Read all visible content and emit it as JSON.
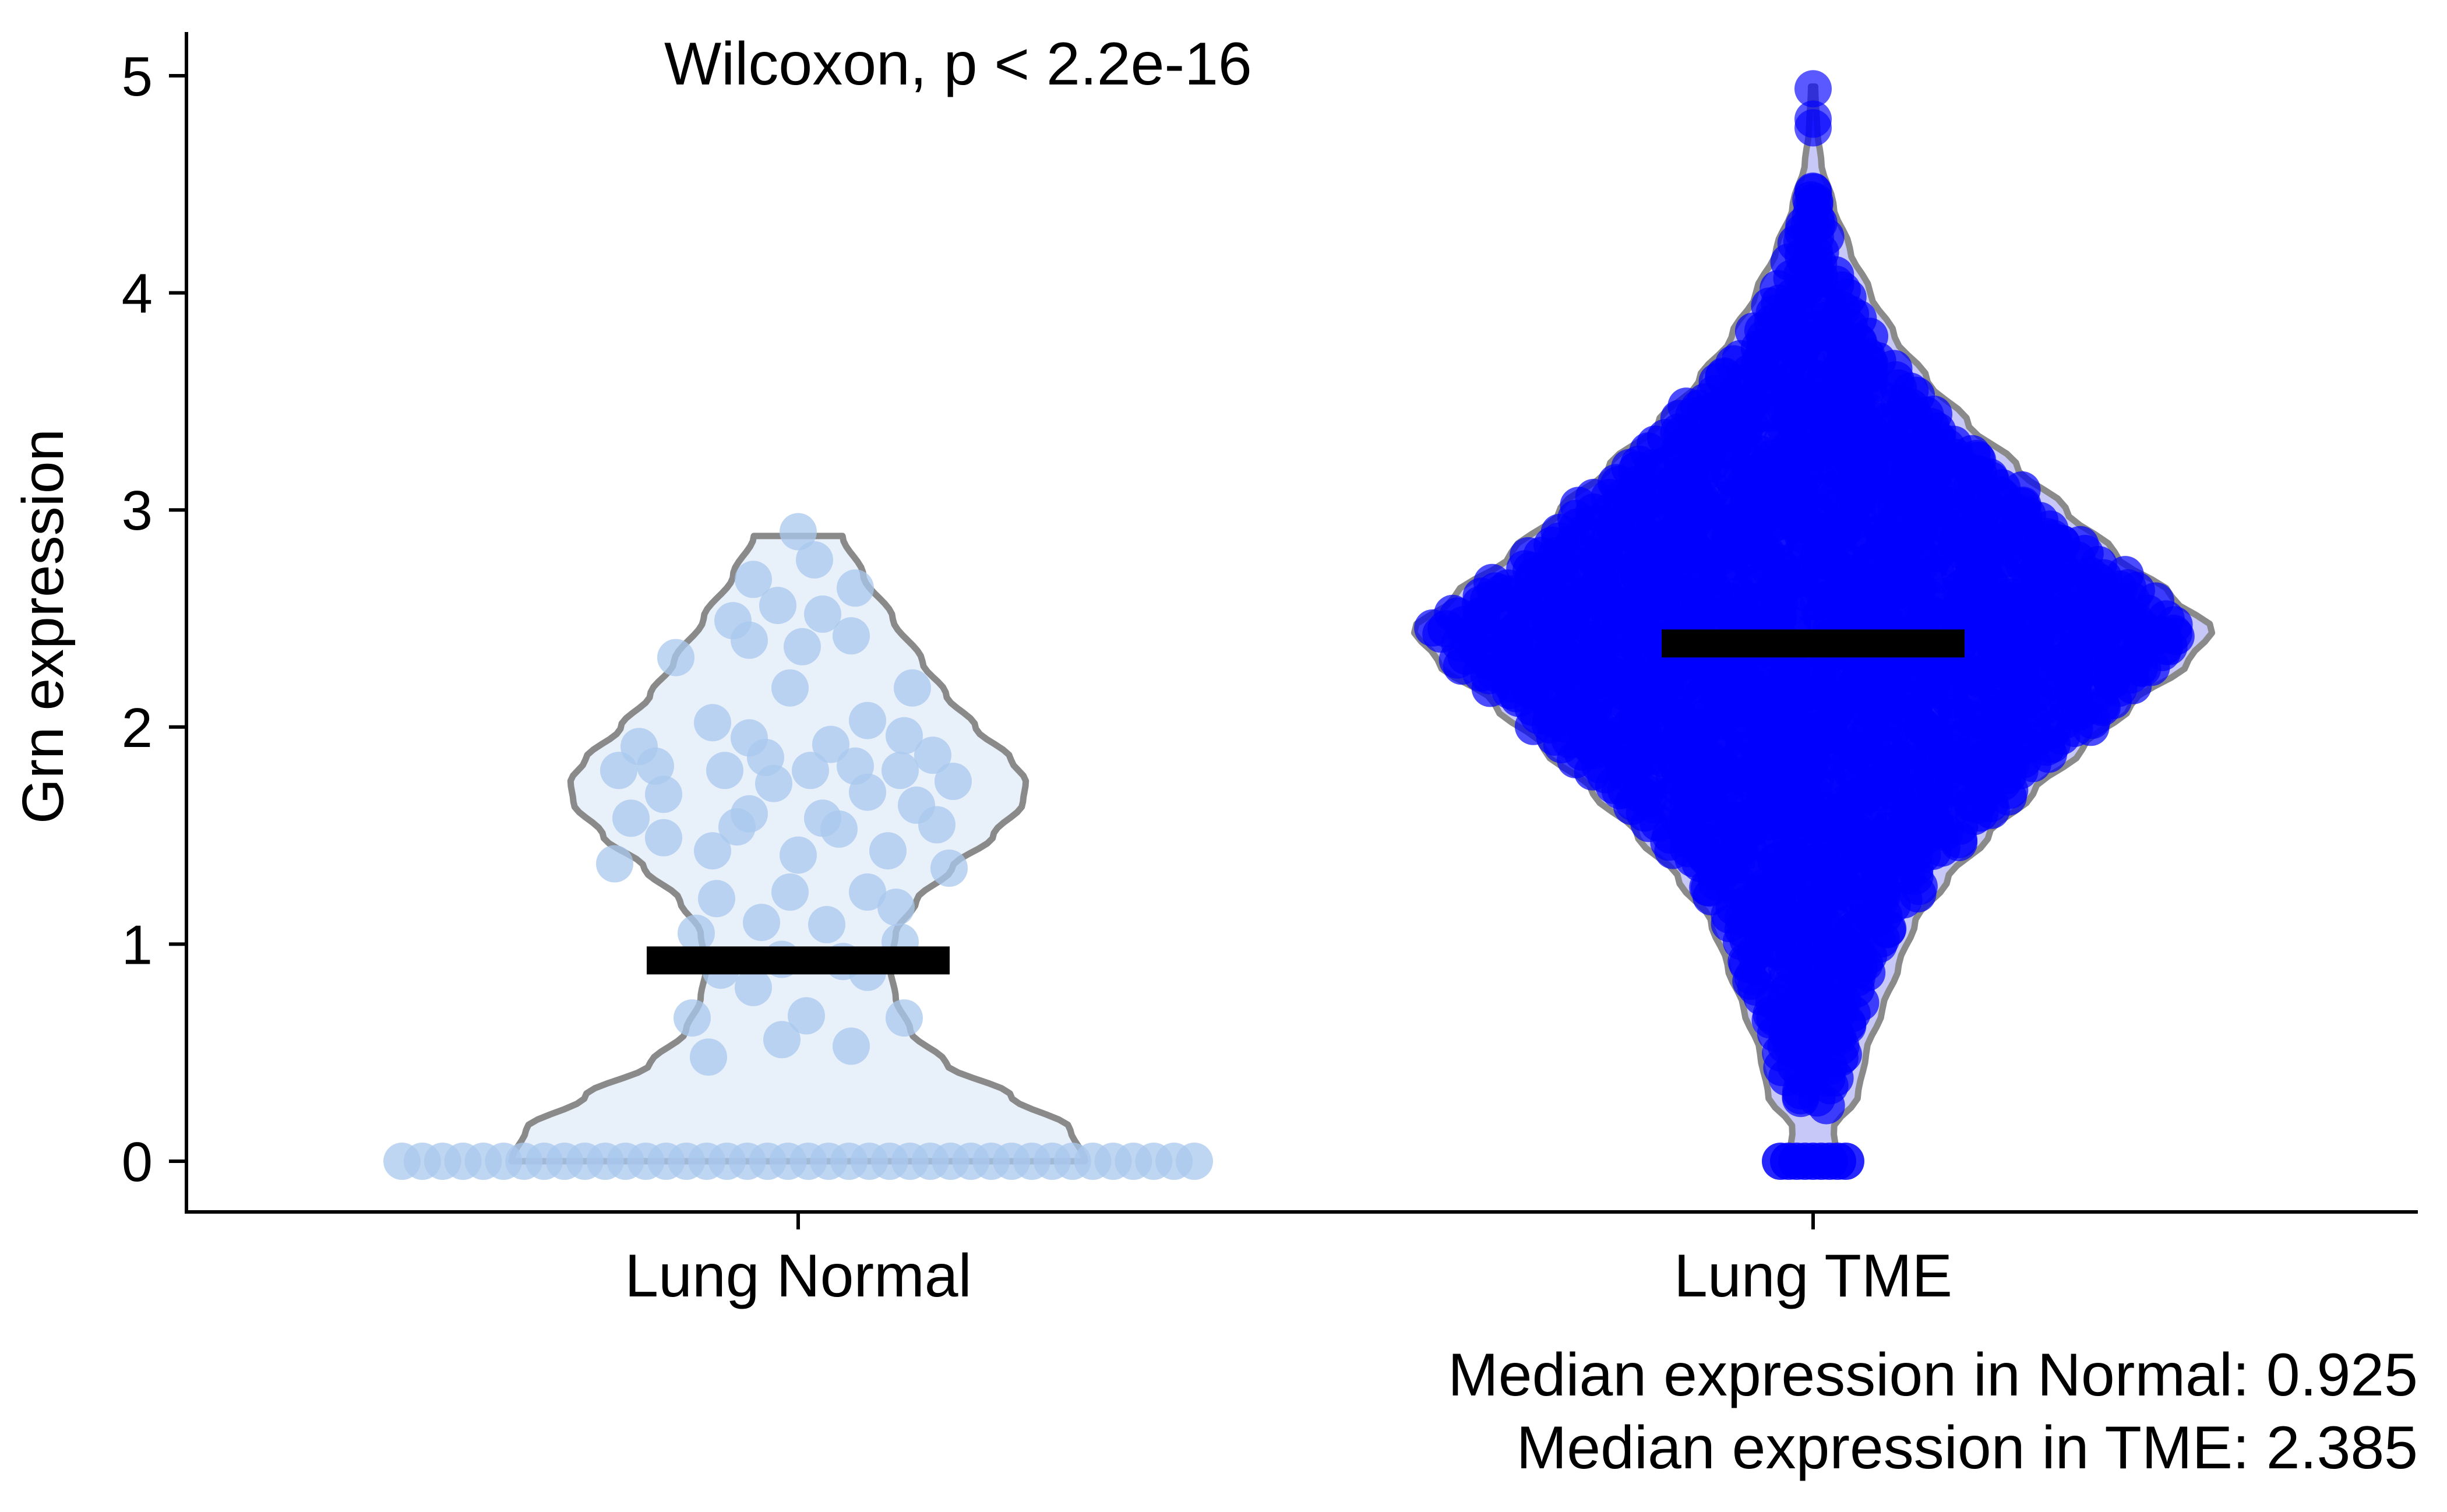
{
  "chart_data": {
    "type": "violin",
    "annotation": "Wilcoxon, p < 2.2e-16",
    "xlabel": "",
    "ylabel": "Grn expression",
    "categories": [
      "Lung Normal",
      "Lung TME"
    ],
    "yticks": [
      0,
      1,
      2,
      3,
      4,
      5
    ],
    "ylim": [
      -0.24,
      5.2
    ],
    "grid": false,
    "legend": "none",
    "medians": [
      0.925,
      2.385
    ],
    "footnotes": [
      "Median expression in Normal: 0.925",
      "Median expression in TME: 2.385"
    ],
    "colors": {
      "normal_points": "#a9c8ee",
      "normal_fill": "#e8f0fa",
      "tme_points": "#0000ff",
      "tme_fill": "#c8c8f8",
      "outline": "#8a8a8a",
      "median_bar": "#000000"
    },
    "normal": {
      "violin_profile": [
        [
          0.0,
          0.97
        ],
        [
          0.15,
          0.92
        ],
        [
          0.3,
          0.72
        ],
        [
          0.45,
          0.5
        ],
        [
          0.6,
          0.38
        ],
        [
          0.75,
          0.33
        ],
        [
          0.9,
          0.31
        ],
        [
          1.05,
          0.33
        ],
        [
          1.2,
          0.4
        ],
        [
          1.35,
          0.52
        ],
        [
          1.5,
          0.66
        ],
        [
          1.65,
          0.76
        ],
        [
          1.75,
          0.77
        ],
        [
          1.85,
          0.72
        ],
        [
          2.0,
          0.6
        ],
        [
          2.15,
          0.5
        ],
        [
          2.3,
          0.42
        ],
        [
          2.5,
          0.32
        ],
        [
          2.7,
          0.22
        ],
        [
          2.88,
          0.15
        ]
      ],
      "zero_points": 40,
      "points": [
        [
          0.0,
          2.9
        ],
        [
          0.04,
          2.77
        ],
        [
          -0.11,
          2.68
        ],
        [
          0.14,
          2.64
        ],
        [
          -0.05,
          2.56
        ],
        [
          0.06,
          2.52
        ],
        [
          -0.16,
          2.49
        ],
        [
          -0.12,
          2.4
        ],
        [
          0.13,
          2.42
        ],
        [
          0.01,
          2.37
        ],
        [
          -0.3,
          2.32
        ],
        [
          -0.02,
          2.18
        ],
        [
          0.28,
          2.18
        ],
        [
          0.17,
          2.03
        ],
        [
          -0.21,
          2.02
        ],
        [
          -0.12,
          1.95
        ],
        [
          0.08,
          1.92
        ],
        [
          0.26,
          1.96
        ],
        [
          -0.39,
          1.91
        ],
        [
          -0.08,
          1.86
        ],
        [
          0.33,
          1.87
        ],
        [
          -0.44,
          1.8
        ],
        [
          -0.35,
          1.82
        ],
        [
          -0.18,
          1.8
        ],
        [
          0.03,
          1.8
        ],
        [
          0.14,
          1.82
        ],
        [
          0.25,
          1.8
        ],
        [
          0.38,
          1.75
        ],
        [
          -0.06,
          1.74
        ],
        [
          0.17,
          1.7
        ],
        [
          -0.33,
          1.69
        ],
        [
          -0.12,
          1.6
        ],
        [
          0.06,
          1.58
        ],
        [
          0.29,
          1.64
        ],
        [
          -0.41,
          1.58
        ],
        [
          -0.15,
          1.54
        ],
        [
          0.1,
          1.53
        ],
        [
          0.34,
          1.55
        ],
        [
          -0.33,
          1.49
        ],
        [
          -0.21,
          1.43
        ],
        [
          0.22,
          1.43
        ],
        [
          0.0,
          1.41
        ],
        [
          -0.45,
          1.37
        ],
        [
          0.37,
          1.35
        ],
        [
          -0.02,
          1.24
        ],
        [
          0.17,
          1.24
        ],
        [
          -0.2,
          1.21
        ],
        [
          0.24,
          1.17
        ],
        [
          0.07,
          1.09
        ],
        [
          -0.09,
          1.1
        ],
        [
          -0.25,
          1.05
        ],
        [
          0.25,
          1.01
        ],
        [
          -0.04,
          0.93
        ],
        [
          0.11,
          0.92
        ],
        [
          0.17,
          0.87
        ],
        [
          -0.19,
          0.88
        ],
        [
          -0.11,
          0.8
        ],
        [
          -0.26,
          0.66
        ],
        [
          0.02,
          0.67
        ],
        [
          0.26,
          0.66
        ],
        [
          -0.04,
          0.56
        ],
        [
          0.13,
          0.53
        ],
        [
          -0.22,
          0.48
        ]
      ]
    },
    "tme": {
      "violin_profile": [
        [
          0.0,
          0.06
        ],
        [
          0.15,
          0.05
        ],
        [
          0.3,
          0.11
        ],
        [
          0.5,
          0.13
        ],
        [
          0.7,
          0.17
        ],
        [
          0.9,
          0.21
        ],
        [
          1.1,
          0.25
        ],
        [
          1.3,
          0.33
        ],
        [
          1.5,
          0.43
        ],
        [
          1.7,
          0.54
        ],
        [
          1.9,
          0.66
        ],
        [
          2.1,
          0.78
        ],
        [
          2.3,
          0.92
        ],
        [
          2.45,
          0.98
        ],
        [
          2.6,
          0.88
        ],
        [
          2.8,
          0.74
        ],
        [
          3.0,
          0.62
        ],
        [
          3.2,
          0.5
        ],
        [
          3.4,
          0.38
        ],
        [
          3.6,
          0.28
        ],
        [
          3.8,
          0.2
        ],
        [
          4.0,
          0.14
        ],
        [
          4.2,
          0.09
        ],
        [
          4.4,
          0.05
        ],
        [
          4.6,
          0.02
        ],
        [
          4.75,
          0.01
        ],
        [
          4.95,
          0.005
        ]
      ],
      "outliers": [
        4.94,
        4.8,
        4.76
      ],
      "zero_cluster_halfwidth": 0.08
    }
  }
}
